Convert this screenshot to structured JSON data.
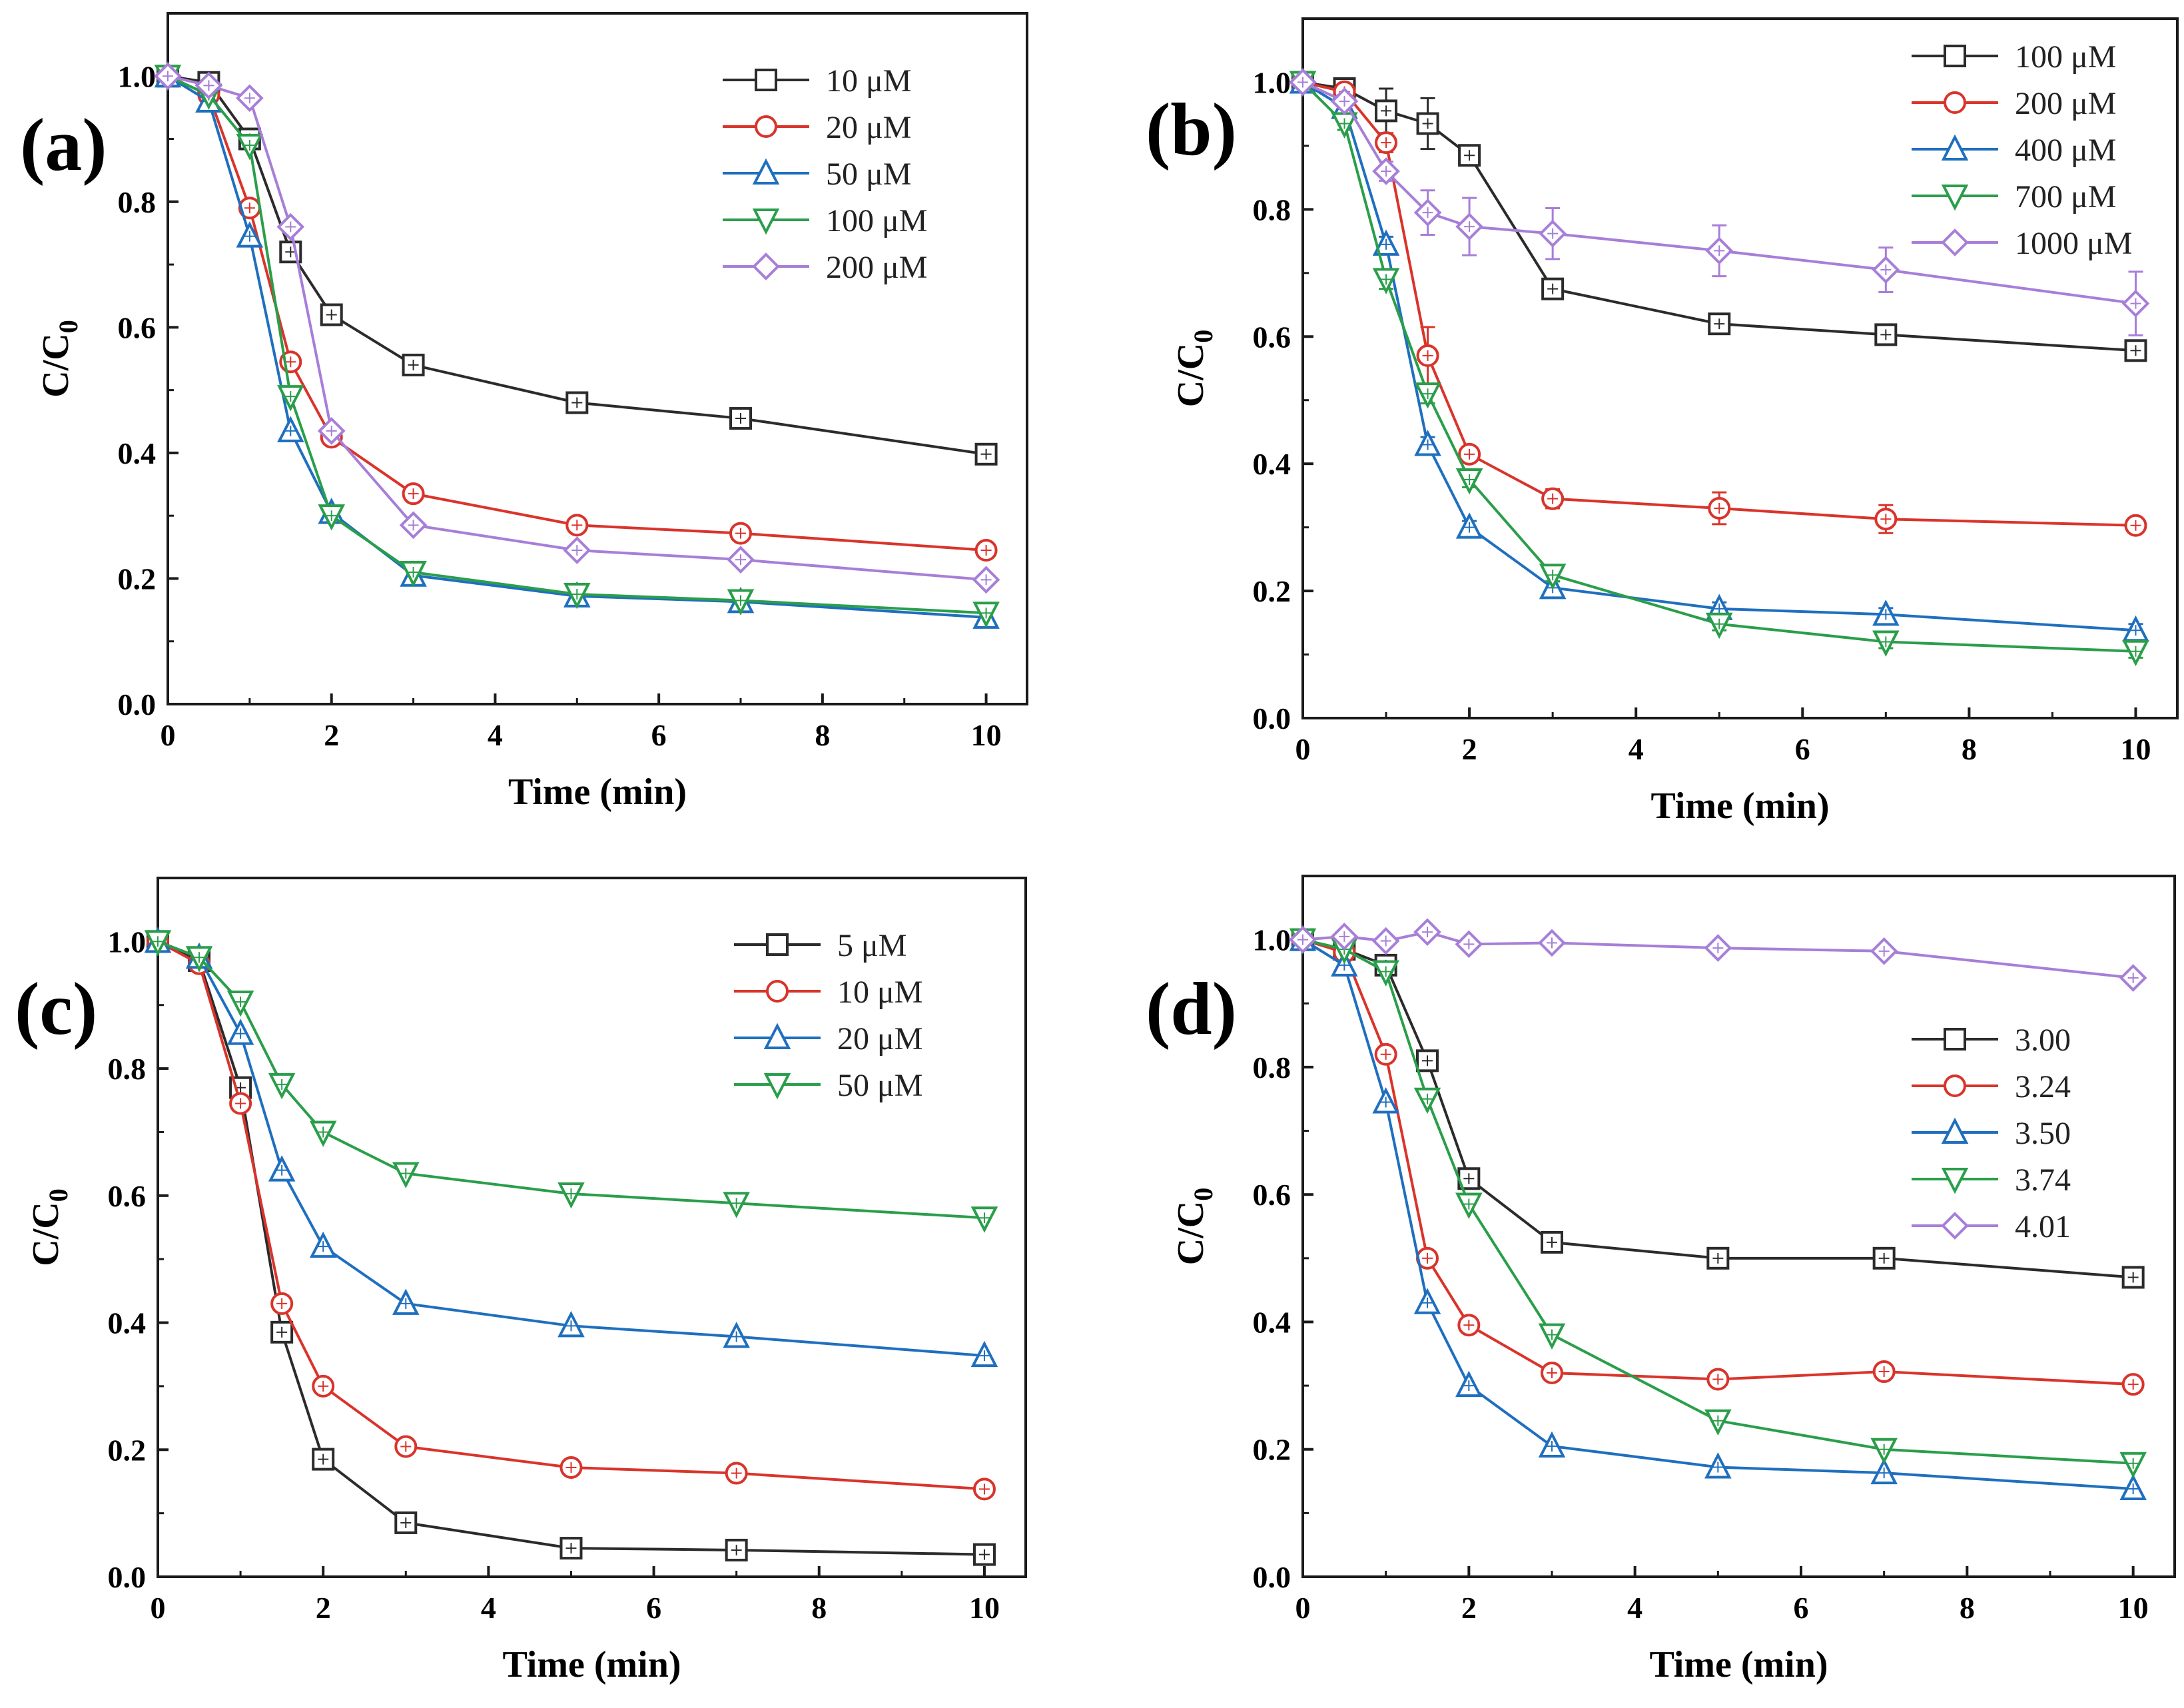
{
  "figure": {
    "colors": {
      "black": "#2b2b2b",
      "red": "#d9342b",
      "blue": "#1f6fbf",
      "green": "#2a9e4a",
      "purple": "#a77ed8",
      "frame": "#1a1a1a"
    }
  },
  "chart_data": [
    {
      "id": "a",
      "type": "line",
      "panel_label": "(a)",
      "xlabel": "Time (min)",
      "ylabel_main": "C/C",
      "ylabel_sub": "0",
      "xlim": [
        0,
        10.5
      ],
      "ylim": [
        0.0,
        1.1
      ],
      "xticks": [
        0,
        2,
        4,
        6,
        8,
        10
      ],
      "yticks": [
        0.0,
        0.2,
        0.4,
        0.6,
        0.8,
        1.0
      ],
      "xtick_labels": [
        "0",
        "2",
        "4",
        "6",
        "8",
        "10"
      ],
      "ytick_labels": [
        "0.0",
        "0.2",
        "0.4",
        "0.6",
        "0.8",
        "1.0"
      ],
      "legend_position": "top-right",
      "x": [
        0,
        0.5,
        1,
        1.5,
        2,
        3,
        5,
        7,
        10
      ],
      "series": [
        {
          "name": "10 μM",
          "marker": "square",
          "color": "#2b2b2b",
          "values": [
            1.0,
            0.99,
            0.9,
            0.72,
            0.62,
            0.54,
            0.48,
            0.455,
            0.398
          ]
        },
        {
          "name": "20 μM",
          "marker": "circle",
          "color": "#d9342b",
          "values": [
            1.0,
            0.97,
            0.79,
            0.545,
            0.425,
            0.335,
            0.285,
            0.272,
            0.245
          ]
        },
        {
          "name": "50 μM",
          "marker": "triangle-up",
          "color": "#1f6fbf",
          "values": [
            1.0,
            0.96,
            0.745,
            0.435,
            0.305,
            0.205,
            0.172,
            0.163,
            0.138
          ]
        },
        {
          "name": "100 μM",
          "marker": "triangle-down",
          "color": "#2a9e4a",
          "values": [
            1.0,
            0.97,
            0.89,
            0.49,
            0.3,
            0.21,
            0.175,
            0.165,
            0.145
          ]
        },
        {
          "name": "200 μM",
          "marker": "diamond",
          "color": "#a77ed8",
          "values": [
            1.0,
            0.985,
            0.965,
            0.76,
            0.435,
            0.285,
            0.245,
            0.23,
            0.198
          ]
        }
      ]
    },
    {
      "id": "b",
      "type": "line",
      "panel_label": "(b)",
      "xlabel": "Time (min)",
      "ylabel_main": "C/C",
      "ylabel_sub": "0",
      "xlim": [
        0,
        10.5
      ],
      "ylim": [
        0.0,
        1.1
      ],
      "xticks": [
        0,
        2,
        4,
        6,
        8,
        10
      ],
      "yticks": [
        0.0,
        0.2,
        0.4,
        0.6,
        0.8,
        1.0
      ],
      "xtick_labels": [
        "0",
        "2",
        "4",
        "6",
        "8",
        "10"
      ],
      "ytick_labels": [
        "0.0",
        "0.2",
        "0.4",
        "0.6",
        "0.8",
        "1.0"
      ],
      "legend_position": "top-right",
      "x": [
        0,
        0.5,
        1,
        1.5,
        2,
        3,
        5,
        7,
        10
      ],
      "series": [
        {
          "name": "100 μM",
          "marker": "square",
          "color": "#2b2b2b",
          "values": [
            1.0,
            0.99,
            0.955,
            0.935,
            0.885,
            0.675,
            0.62,
            0.603,
            0.578
          ],
          "errors": [
            0,
            0.01,
            0.035,
            0.04,
            0.012,
            0.012,
            0.012,
            0.01,
            0.015
          ]
        },
        {
          "name": "200 μM",
          "marker": "circle",
          "color": "#d9342b",
          "values": [
            1.0,
            0.985,
            0.905,
            0.57,
            0.415,
            0.345,
            0.33,
            0.313,
            0.303
          ],
          "errors": [
            0,
            0.01,
            0.015,
            0.045,
            0.012,
            0.015,
            0.025,
            0.022,
            0.01
          ]
        },
        {
          "name": "400 μM",
          "marker": "triangle-up",
          "color": "#1f6fbf",
          "values": [
            1.0,
            0.96,
            0.745,
            0.43,
            0.3,
            0.205,
            0.172,
            0.163,
            0.138
          ],
          "errors": [
            0,
            0.01,
            0.012,
            0.012,
            0.01,
            0.01,
            0.01,
            0.01,
            0.01
          ]
        },
        {
          "name": "700 μM",
          "marker": "triangle-down",
          "color": "#2a9e4a",
          "values": [
            1.0,
            0.935,
            0.69,
            0.51,
            0.375,
            0.225,
            0.148,
            0.12,
            0.105
          ],
          "errors": [
            0,
            0.01,
            0.015,
            0.015,
            0.012,
            0.01,
            0.01,
            0.01,
            0.01
          ]
        },
        {
          "name": "1000 μM",
          "marker": "diamond",
          "color": "#a77ed8",
          "values": [
            1.0,
            0.97,
            0.86,
            0.795,
            0.773,
            0.762,
            0.735,
            0.705,
            0.652
          ],
          "errors": [
            0,
            0.01,
            0.015,
            0.035,
            0.045,
            0.04,
            0.04,
            0.035,
            0.05
          ]
        }
      ]
    },
    {
      "id": "c",
      "type": "line",
      "panel_label": "(c)",
      "xlabel": "Time (min)",
      "ylabel_main": "C/C",
      "ylabel_sub": "0",
      "xlim": [
        0,
        10.5
      ],
      "ylim": [
        0.0,
        1.1
      ],
      "xticks": [
        0,
        2,
        4,
        6,
        8,
        10
      ],
      "yticks": [
        0.0,
        0.2,
        0.4,
        0.6,
        0.8,
        1.0
      ],
      "xtick_labels": [
        "0",
        "2",
        "4",
        "6",
        "8",
        "10"
      ],
      "ytick_labels": [
        "0.0",
        "0.2",
        "0.4",
        "0.6",
        "0.8",
        "1.0"
      ],
      "legend_position": "top-right",
      "x": [
        0,
        0.5,
        1,
        1.5,
        2,
        3,
        5,
        7,
        10
      ],
      "series": [
        {
          "name": "5 μM",
          "marker": "square",
          "color": "#2b2b2b",
          "values": [
            1.0,
            0.97,
            0.77,
            0.385,
            0.185,
            0.085,
            0.045,
            0.042,
            0.035
          ]
        },
        {
          "name": "10 μM",
          "marker": "circle",
          "color": "#d9342b",
          "values": [
            1.0,
            0.965,
            0.745,
            0.43,
            0.3,
            0.205,
            0.172,
            0.163,
            0.138
          ]
        },
        {
          "name": "20 μM",
          "marker": "triangle-up",
          "color": "#1f6fbf",
          "values": [
            1.0,
            0.975,
            0.855,
            0.64,
            0.52,
            0.43,
            0.395,
            0.378,
            0.348
          ]
        },
        {
          "name": "50 μM",
          "marker": "triangle-down",
          "color": "#2a9e4a",
          "values": [
            1.0,
            0.975,
            0.905,
            0.775,
            0.7,
            0.635,
            0.603,
            0.588,
            0.565
          ]
        }
      ]
    },
    {
      "id": "d",
      "type": "line",
      "panel_label": "(d)",
      "xlabel": "Time (min)",
      "ylabel_main": "C/C",
      "ylabel_sub": "0",
      "xlim": [
        0,
        10.5
      ],
      "ylim": [
        0.0,
        1.1
      ],
      "xticks": [
        0,
        2,
        4,
        6,
        8,
        10
      ],
      "yticks": [
        0.0,
        0.2,
        0.4,
        0.6,
        0.8,
        1.0
      ],
      "xtick_labels": [
        "0",
        "2",
        "4",
        "6",
        "8",
        "10"
      ],
      "ytick_labels": [
        "0.0",
        "0.2",
        "0.4",
        "0.6",
        "0.8",
        "1.0"
      ],
      "legend_position": "center-right",
      "x": [
        0,
        0.5,
        1,
        1.5,
        2,
        3,
        5,
        7,
        10
      ],
      "series": [
        {
          "name": "3.00",
          "marker": "square",
          "color": "#2b2b2b",
          "values": [
            1.0,
            0.985,
            0.96,
            0.81,
            0.625,
            0.525,
            0.5,
            0.5,
            0.47
          ]
        },
        {
          "name": "3.24",
          "marker": "circle",
          "color": "#d9342b",
          "values": [
            1.0,
            0.98,
            0.82,
            0.5,
            0.395,
            0.32,
            0.31,
            0.322,
            0.302
          ]
        },
        {
          "name": "3.50",
          "marker": "triangle-up",
          "color": "#1f6fbf",
          "values": [
            1.0,
            0.96,
            0.745,
            0.43,
            0.3,
            0.205,
            0.172,
            0.163,
            0.138
          ]
        },
        {
          "name": "3.74",
          "marker": "triangle-down",
          "color": "#2a9e4a",
          "values": [
            1.0,
            0.985,
            0.95,
            0.75,
            0.585,
            0.38,
            0.245,
            0.2,
            0.178
          ]
        },
        {
          "name": "4.01",
          "marker": "diamond",
          "color": "#a77ed8",
          "values": [
            1.0,
            1.005,
            0.998,
            1.012,
            0.993,
            0.995,
            0.987,
            0.982,
            0.94
          ]
        }
      ]
    }
  ]
}
